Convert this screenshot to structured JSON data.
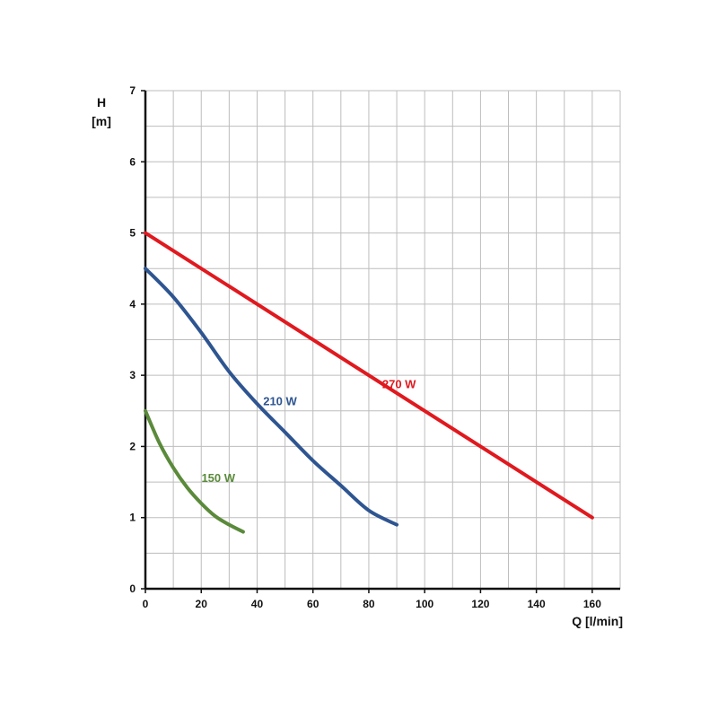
{
  "chart_data": {
    "type": "line",
    "xlabel": "Q [l/min]",
    "ylabel_line1": "H",
    "ylabel_line2": "[m]",
    "xlim": [
      0,
      170
    ],
    "ylim": [
      0,
      7
    ],
    "x_ticks": [
      0,
      20,
      40,
      60,
      80,
      100,
      120,
      140,
      160
    ],
    "y_ticks": [
      0,
      1,
      2,
      3,
      4,
      5,
      6,
      7
    ],
    "grid": true,
    "series": [
      {
        "name": "270 W",
        "color": "#e0191f",
        "x": [
          0,
          160
        ],
        "y": [
          5.0,
          1.0
        ]
      },
      {
        "name": "210 W",
        "color": "#2e5591",
        "x": [
          0,
          10,
          20,
          30,
          40,
          50,
          60,
          70,
          80,
          90
        ],
        "y": [
          4.5,
          4.1,
          3.6,
          3.05,
          2.6,
          2.2,
          1.8,
          1.45,
          1.1,
          0.9
        ]
      },
      {
        "name": "150 W",
        "color": "#5a8a3a",
        "x": [
          0,
          5,
          10,
          15,
          20,
          25,
          30,
          35
        ],
        "y": [
          2.5,
          2.05,
          1.7,
          1.42,
          1.2,
          1.02,
          0.9,
          0.8
        ]
      }
    ]
  }
}
